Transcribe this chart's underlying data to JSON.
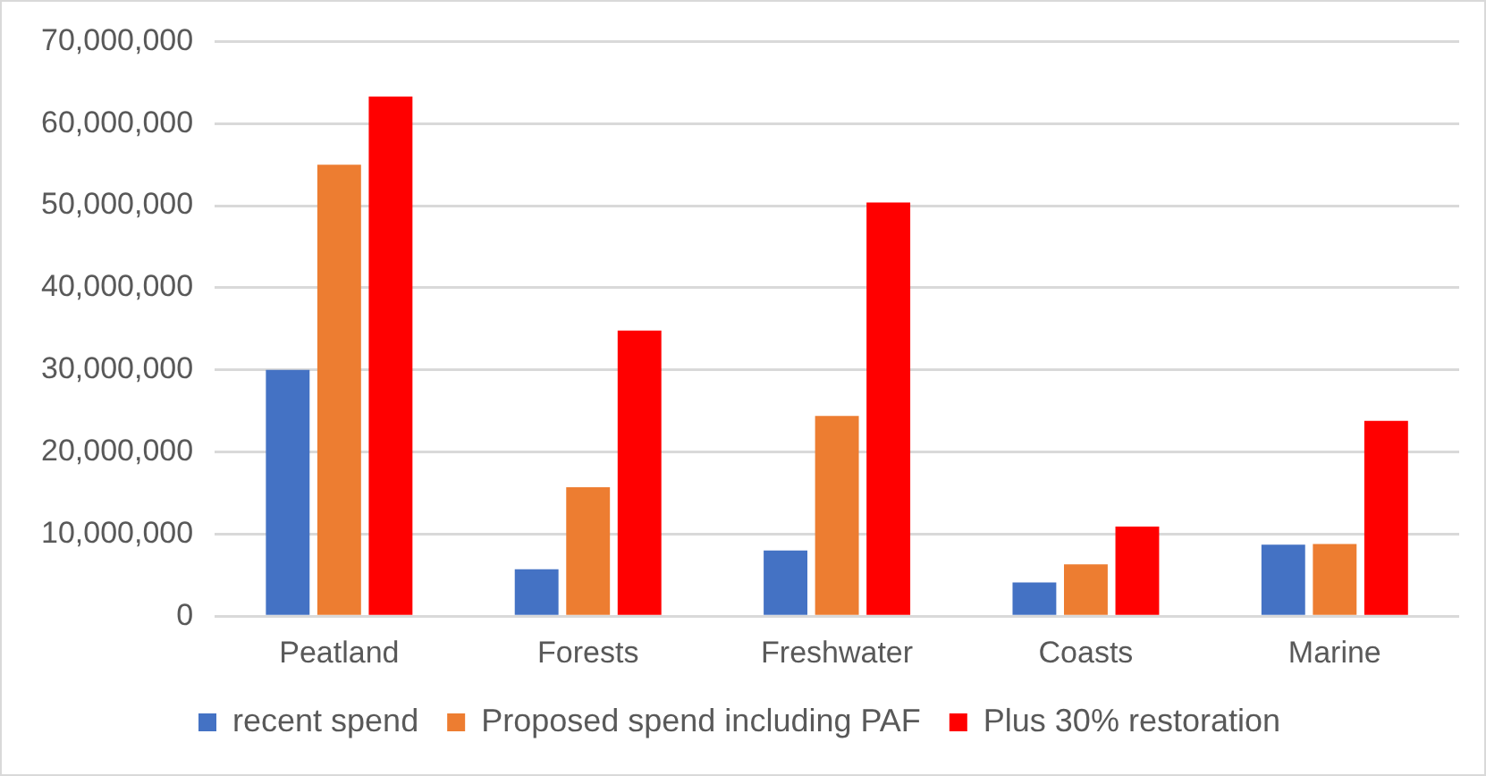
{
  "chart_data": {
    "type": "bar",
    "categories": [
      "Peatland",
      "Forests",
      "Freshwater",
      "Coasts",
      "Marine"
    ],
    "series": [
      {
        "name": "recent spend",
        "color": "#4472c4",
        "values": [
          30000000,
          5700000,
          8000000,
          4100000,
          8700000
        ]
      },
      {
        "name": "Proposed spend including PAF",
        "color": "#ed7d31",
        "values": [
          55000000,
          15700000,
          24400000,
          6300000,
          8800000
        ]
      },
      {
        "name": "Plus 30% restoration",
        "color": "#ff0000",
        "values": [
          63300000,
          34800000,
          50400000,
          10900000,
          23800000
        ]
      }
    ],
    "ylim": [
      0,
      70000000
    ],
    "yticks": [
      0,
      {
        "value": 10000000,
        "label": "10,000,000"
      },
      {
        "value": 20000000,
        "label": "20,000,000"
      },
      {
        "value": 30000000,
        "label": "30,000,000"
      },
      {
        "value": 40000000,
        "label": "40,000,000"
      },
      {
        "value": 50000000,
        "label": "50,000,000"
      },
      {
        "value": 60000000,
        "label": "60,000,000"
      },
      {
        "value": 70000000,
        "label": "70,000,000"
      }
    ],
    "grid": "y",
    "legend": "bottom"
  }
}
